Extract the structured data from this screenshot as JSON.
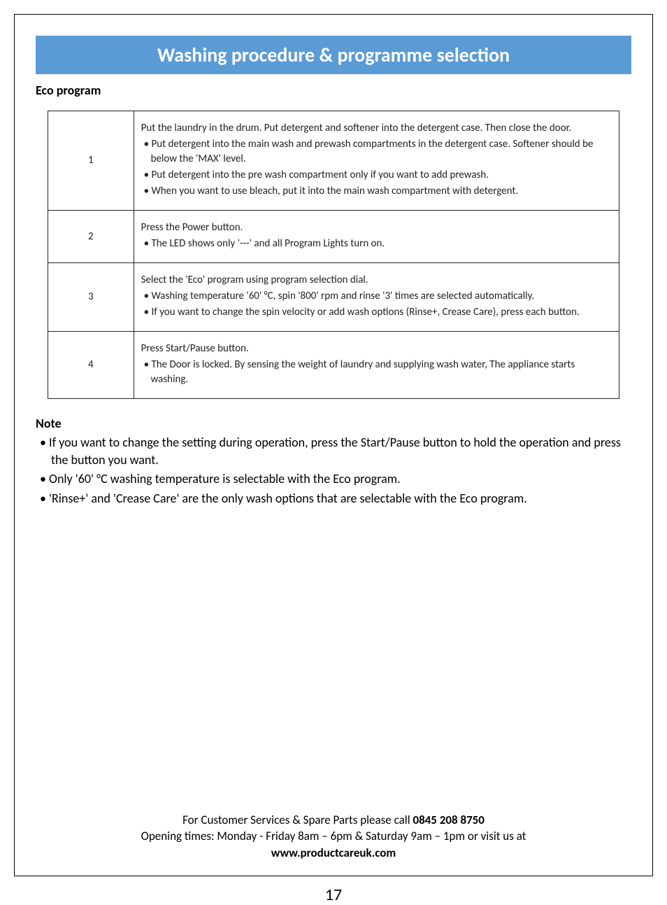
{
  "title_bar": "Washing procedure & programme selection",
  "section_heading": "Eco program",
  "table": {
    "rows": [
      {
        "num": "1",
        "lines": [
          "Put the laundry in the drum. Put detergent and softener into the detergent case. Then close the door.",
          "• Put detergent into the main wash and prewash compartments in the detergent case. Softener should be below the 'MAX' level.",
          "• Put detergent into the pre wash compartment only if you want to add prewash.",
          "• When you want to use bleach, put it into the main wash compartment with detergent."
        ]
      },
      {
        "num": "2",
        "lines": [
          "Press the Power button.",
          "• The LED shows only '---' and all Program Lights turn on."
        ]
      },
      {
        "num": "3",
        "lines": [
          "Select the 'Eco' program using program selection dial.",
          "• Washing temperature '60' °C, spin '800' rpm and rinse '3' times are selected automatically.",
          "• If you want to change the spin velocity or add wash options (Rinse+, Crease Care), press each button."
        ]
      },
      {
        "num": "4",
        "lines": [
          "Press Start/Pause button.",
          "• The Door is locked. By sensing the weight of laundry and supplying wash water, The appliance starts washing."
        ]
      }
    ]
  },
  "note_heading": "Note",
  "notes": [
    "If you want to change the setting during operation, press the Start/Pause button to hold the operation and press the button you want.",
    "Only '60' °C washing temperature is selectable with the Eco program.",
    "'Rinse+' and 'Crease Care' are the only wash options that are selectable with the Eco program."
  ],
  "footer_line1_prefix": "For Customer Services & Spare Parts please call ",
  "footer_line1_bold": "0845 208 8750",
  "footer_line2": "Opening times: Monday - Friday  8am – 6pm & Saturday 9am – 1pm or visit us at",
  "footer_line3_bold": "www.productcareuk.com",
  "page_number": "17",
  "colors": {
    "title_bg": "#5b9bd5",
    "title_fg": "#ffffff",
    "border": "#000000",
    "text": "#222222"
  }
}
